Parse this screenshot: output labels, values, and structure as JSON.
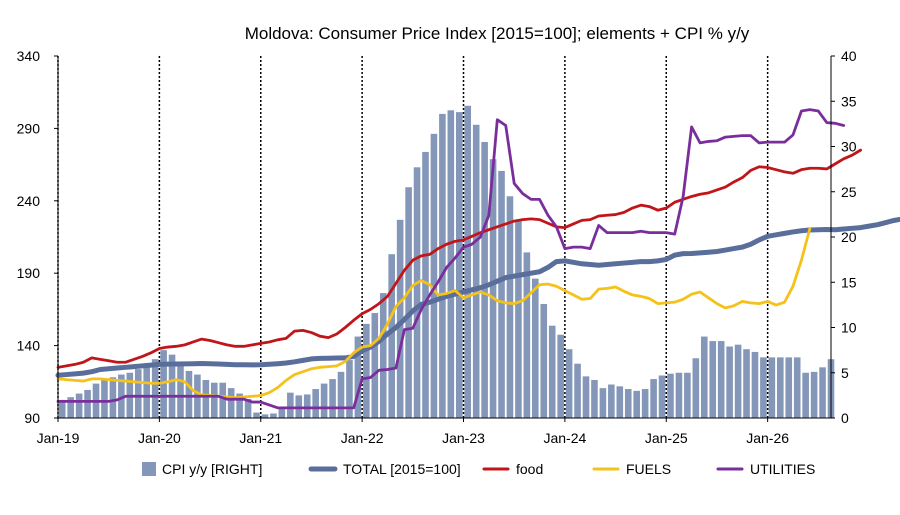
{
  "chart_data": {
    "type": "bar+line",
    "title": "Moldova: Consumer Price Index [2015=100]; elements + CPI % y/y",
    "x_tick_labels": [
      "Jan-19",
      "Jan-20",
      "Jan-21",
      "Jan-22",
      "Jan-23",
      "Jan-24",
      "Jan-25",
      "Jan-26"
    ],
    "left_axis": {
      "ylim": [
        90,
        340
      ],
      "ticks": [
        "340",
        "290",
        "240",
        "190",
        "140",
        "90"
      ]
    },
    "right_axis": {
      "ylim": [
        0,
        40
      ],
      "ticks": [
        "40",
        "35",
        "30",
        "25",
        "20",
        "15",
        "10",
        "5",
        "0"
      ]
    },
    "x_start": "Jan-19",
    "grid": "dotted vertical lines at each January",
    "legend_position": "bottom",
    "colors": {
      "bars": "#8497b9",
      "total": "#5a6e9c",
      "food": "#c0161a",
      "fuels": "#f4c21a",
      "utilities": "#7a2e9c"
    },
    "bars": {
      "name": "CPI y/y [RIGHT]",
      "values": [
        2.0,
        2.3,
        2.7,
        3.1,
        3.8,
        4.3,
        4.5,
        4.8,
        5.0,
        5.4,
        5.8,
        6.5,
        7.5,
        7.0,
        6.2,
        5.2,
        4.8,
        4.2,
        3.9,
        3.9,
        3.3,
        2.7,
        2.1,
        0.6,
        0.4,
        0.5,
        1.2,
        2.8,
        2.5,
        2.6,
        3.2,
        3.8,
        4.3,
        5.1,
        6.4,
        9.0,
        10.4,
        11.6,
        13.8,
        18.1,
        21.9,
        25.5,
        27.7,
        29.4,
        31.4,
        33.6,
        34.0,
        33.8,
        34.5,
        32.4,
        30.5,
        28.6,
        27.3,
        24.5,
        21.9,
        18.3,
        15.4,
        12.6,
        10.2,
        9.2,
        7.6,
        6.0,
        4.6,
        4.2,
        3.3,
        3.7,
        3.5,
        3.2,
        3.0,
        3.2,
        4.3,
        4.7,
        4.9,
        5.0,
        5.0,
        6.6,
        9.0,
        8.5,
        8.5,
        7.9,
        8.1,
        7.6,
        7.3,
        6.7,
        6.7,
        6.7,
        6.7,
        6.7,
        5.0,
        5.1,
        5.6,
        6.5
      ]
    },
    "series": [
      {
        "name": "TOTAL [2015=100]",
        "values": [
          119.5,
          120.0,
          120.5,
          121.0,
          122.0,
          123.5,
          124.0,
          124.5,
          125.0,
          125.5,
          126.0,
          126.5,
          127.0,
          127.2,
          127.3,
          127.4,
          127.5,
          127.6,
          127.5,
          127.3,
          127.0,
          126.8,
          126.8,
          126.7,
          126.8,
          127.1,
          127.5,
          128.0,
          128.8,
          129.8,
          130.8,
          131.2,
          131.3,
          131.4,
          131.5,
          132.5,
          136.5,
          139.0,
          143.0,
          148.0,
          152.5,
          158.0,
          164.0,
          168.5,
          170.0,
          172.0,
          174.0,
          175.5,
          177.0,
          178.5,
          180.0,
          182.0,
          184.5,
          187.0,
          188.0,
          189.0,
          190.0,
          191.0,
          194.0,
          198.0,
          198.5,
          197.5,
          196.5,
          196.0,
          195.5,
          196.0,
          196.5,
          197.0,
          197.5,
          198.0,
          198.0,
          198.5,
          199.5,
          202.5,
          203.5,
          203.6,
          204.0,
          204.5,
          205.0,
          206.0,
          207.0,
          208.0,
          210.0,
          213.0,
          215.5,
          216.5,
          217.5,
          218.5,
          219.3,
          219.8,
          220.0,
          220.2,
          220.0,
          220.5,
          221.0,
          221.5,
          222.5,
          223.5,
          225.0,
          226.5,
          227.5,
          229.0,
          231.5,
          234.0
        ]
      },
      {
        "name": "food",
        "values": [
          125.0,
          126.0,
          127.0,
          128.5,
          131.5,
          130.5,
          129.5,
          128.5,
          128.5,
          130.5,
          132.5,
          135.0,
          138.0,
          139.0,
          139.5,
          140.5,
          142.5,
          144.5,
          143.5,
          142.0,
          140.5,
          139.5,
          139.5,
          140.5,
          141.5,
          142.5,
          144.0,
          145.0,
          150.0,
          150.5,
          149.0,
          146.5,
          145.5,
          148.0,
          152.5,
          157.5,
          162.0,
          165.0,
          169.0,
          174.0,
          183.0,
          192.0,
          199.0,
          202.0,
          203.0,
          207.0,
          210.0,
          212.0,
          213.0,
          215.5,
          218.0,
          220.0,
          222.0,
          224.0,
          226.0,
          227.0,
          227.5,
          227.0,
          224.5,
          222.0,
          221.5,
          224.0,
          226.5,
          227.0,
          229.5,
          230.0,
          230.5,
          232.0,
          235.0,
          237.0,
          236.0,
          233.5,
          235.0,
          239.0,
          241.0,
          243.0,
          244.5,
          245.5,
          247.5,
          249.5,
          253.0,
          256.0,
          261.0,
          263.5,
          263.0,
          261.5,
          260.0,
          259.0,
          261.5,
          262.5,
          262.5,
          262.0,
          265.5,
          269.0,
          271.5,
          275.0
        ]
      },
      {
        "name": "FUELS",
        "values": [
          117.0,
          116.5,
          116.0,
          115.5,
          117.0,
          117.0,
          116.5,
          116.0,
          115.5,
          115.0,
          114.5,
          114.0,
          114.0,
          115.0,
          116.5,
          115.0,
          109.0,
          106.0,
          105.5,
          105.0,
          104.5,
          104.0,
          104.5,
          105.0,
          105.5,
          107.5,
          111.0,
          116.0,
          120.0,
          122.0,
          124.0,
          125.0,
          125.5,
          126.0,
          129.0,
          135.0,
          139.0,
          140.0,
          145.0,
          155.0,
          167.0,
          173.0,
          181.5,
          185.0,
          182.0,
          175.0,
          176.0,
          178.0,
          173.0,
          175.0,
          177.0,
          175.0,
          171.0,
          169.5,
          169.0,
          171.0,
          176.5,
          182.0,
          182.5,
          181.0,
          178.0,
          175.0,
          172.0,
          172.5,
          179.0,
          179.5,
          180.5,
          177.5,
          175.0,
          174.0,
          172.5,
          169.0,
          169.5,
          170.0,
          172.0,
          175.5,
          177.0,
          173.0,
          169.0,
          166.0,
          167.5,
          170.5,
          169.5,
          169.0,
          170.5,
          168.0,
          170.0,
          181.0,
          199.0,
          221.0
        ]
      },
      {
        "name": "UTILITIES",
        "values": [
          101.5,
          101.5,
          101.5,
          101.5,
          101.5,
          101.5,
          101.5,
          102.5,
          105.0,
          105.0,
          105.0,
          105.0,
          105.0,
          105.0,
          105.0,
          105.0,
          105.0,
          105.0,
          105.0,
          105.0,
          103.0,
          103.0,
          103.0,
          101.0,
          101.0,
          99.0,
          97.0,
          97.0,
          97.0,
          97.0,
          97.0,
          97.0,
          97.0,
          97.0,
          97.0,
          97.0,
          117.0,
          118.0,
          123.0,
          123.5,
          124.5,
          151.0,
          152.0,
          165.0,
          175.0,
          184.0,
          194.0,
          200.5,
          208.0,
          210.0,
          215.0,
          230.0,
          296.0,
          292.0,
          252.0,
          245.0,
          241.0,
          241.0,
          230.0,
          222.0,
          207.0,
          208.0,
          208.0,
          207.0,
          223.0,
          218.0,
          218.0,
          218.0,
          218.0,
          219.0,
          218.0,
          218.0,
          218.0,
          217.0,
          243.0,
          291.0,
          280.0,
          281.0,
          281.5,
          284.0,
          284.5,
          285.0,
          285.0,
          280.0,
          280.5,
          280.5,
          280.5,
          285.5,
          302.0,
          303.0,
          302.0,
          294.0,
          293.5,
          292.0
        ]
      }
    ],
    "legend": [
      {
        "label": "CPI y/y [RIGHT]",
        "kind": "bar",
        "color": "#8497b9"
      },
      {
        "label": "TOTAL [2015=100]",
        "kind": "line",
        "color": "#5a6e9c"
      },
      {
        "label": "food",
        "kind": "line",
        "color": "#c0161a"
      },
      {
        "label": "FUELS",
        "kind": "line",
        "color": "#f4c21a"
      },
      {
        "label": "UTILITIES",
        "kind": "line",
        "color": "#7a2e9c"
      }
    ]
  }
}
